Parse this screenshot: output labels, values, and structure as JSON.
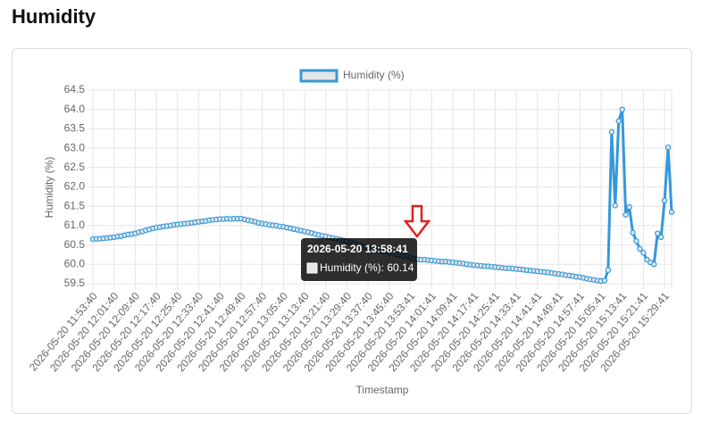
{
  "page": {
    "heading": "Humidity"
  },
  "chart_data": {
    "type": "line",
    "x_label": "Timestamp",
    "y_label": "Humidity (%)",
    "categories": [
      "2026-05-20 11:53:40",
      null,
      null,
      null,
      null,
      null,
      "2026-05-20 12:01:40",
      null,
      null,
      null,
      null,
      null,
      "2026-05-20 12:09:40",
      null,
      null,
      null,
      null,
      null,
      "2026-05-20 12:17:40",
      null,
      null,
      null,
      null,
      null,
      "2026-05-20 12:25:40",
      null,
      null,
      null,
      null,
      null,
      "2026-05-20 12:33:40",
      null,
      null,
      null,
      null,
      null,
      "2026-05-20 12:41:40",
      null,
      null,
      null,
      null,
      null,
      "2026-05-20 12:49:40",
      null,
      null,
      null,
      null,
      null,
      "2026-05-20 12:57:40",
      null,
      null,
      null,
      null,
      null,
      "2026-05-20 13:05:40",
      null,
      null,
      null,
      null,
      null,
      "2026-05-20 13:13:40",
      null,
      null,
      null,
      null,
      null,
      "2026-05-20 13:21:40",
      null,
      null,
      null,
      null,
      null,
      "2026-05-20 13:29:40",
      null,
      null,
      null,
      null,
      null,
      "2026-05-20 13:37:40",
      null,
      null,
      null,
      null,
      null,
      "2026-05-20 13:45:40",
      null,
      null,
      null,
      null,
      null,
      "2026-05-20 13:53:41",
      "2026-05-20 13:58:41",
      null,
      null,
      null,
      null,
      "2026-05-20 14:01:41",
      null,
      null,
      null,
      null,
      null,
      "2026-05-20 14:09:41",
      null,
      null,
      null,
      null,
      null,
      "2026-05-20 14:17:41",
      null,
      null,
      null,
      null,
      null,
      "2026-05-20 14:25:41",
      null,
      null,
      null,
      null,
      null,
      "2026-05-20 14:33:41",
      null,
      null,
      null,
      null,
      null,
      "2026-05-20 14:41:41",
      null,
      null,
      null,
      null,
      null,
      "2026-05-20 14:49:41",
      null,
      null,
      null,
      null,
      null,
      "2026-05-20 14:57:41",
      null,
      null,
      null,
      null,
      null,
      "2026-05-20 15:05:41",
      null,
      null,
      null,
      null,
      null,
      "2026-05-20 15:13:41",
      null,
      null,
      null,
      null,
      null,
      "2026-05-20 15:21:41",
      null,
      null,
      null,
      null,
      null,
      "2026-05-20 15:29:41",
      null,
      null
    ],
    "tick_every": 6,
    "series": [
      {
        "name": "Humidity (%)",
        "color": "#3498db",
        "fill": "#e6e6e6",
        "values": [
          60.65,
          60.66,
          60.66,
          60.67,
          60.68,
          60.69,
          60.7,
          60.72,
          60.73,
          60.75,
          60.77,
          60.78,
          60.8,
          60.83,
          60.85,
          60.88,
          60.9,
          60.93,
          60.95,
          60.96,
          60.98,
          60.99,
          61.0,
          61.02,
          61.03,
          61.04,
          61.05,
          61.06,
          61.07,
          61.09,
          61.1,
          61.11,
          61.12,
          61.14,
          61.15,
          61.16,
          61.17,
          61.17,
          61.18,
          61.17,
          61.18,
          61.18,
          61.18,
          61.16,
          61.14,
          61.12,
          61.1,
          61.07,
          61.05,
          61.04,
          61.02,
          61.01,
          61.0,
          60.98,
          60.97,
          60.95,
          60.93,
          60.91,
          60.89,
          60.87,
          60.85,
          60.83,
          60.81,
          60.78,
          60.76,
          60.74,
          60.72,
          60.7,
          60.68,
          60.66,
          60.64,
          60.62,
          60.6,
          60.57,
          60.54,
          60.51,
          60.48,
          60.45,
          60.42,
          60.4,
          60.38,
          60.36,
          60.34,
          60.32,
          60.3,
          60.28,
          60.26,
          60.24,
          60.22,
          60.2,
          60.18,
          60.14,
          60.13,
          60.12,
          60.12,
          60.11,
          60.1,
          60.09,
          60.08,
          60.07,
          60.07,
          60.06,
          60.05,
          60.04,
          60.03,
          60.02,
          60.0,
          59.99,
          59.98,
          59.97,
          59.96,
          59.95,
          59.95,
          59.94,
          59.93,
          59.92,
          59.91,
          59.9,
          59.9,
          59.89,
          59.88,
          59.87,
          59.86,
          59.85,
          59.84,
          59.83,
          59.82,
          59.81,
          59.8,
          59.79,
          59.78,
          59.76,
          59.75,
          59.74,
          59.72,
          59.71,
          59.7,
          59.68,
          59.67,
          59.65,
          59.63,
          59.61,
          59.6,
          59.58,
          59.57,
          59.58,
          59.85,
          63.42,
          61.52,
          63.7,
          64.0,
          61.28,
          61.48,
          60.82,
          60.6,
          60.4,
          60.3,
          60.12,
          60.05,
          60.0,
          60.8,
          60.7,
          61.65,
          63.02,
          61.35
        ]
      }
    ],
    "ylim": [
      59.5,
      64.5
    ],
    "yticks": [
      59.5,
      {
        "value": 60,
        "label": "60.0"
      },
      60.5,
      {
        "value": 61,
        "label": "61.0"
      },
      61.5,
      {
        "value": 62,
        "label": "62.0"
      },
      62.5,
      {
        "value": 63,
        "label": "63.0"
      },
      63.5,
      {
        "value": 64,
        "label": "64.0"
      },
      64.5
    ],
    "grid": true,
    "legend": "top",
    "tooltip": {
      "title": "2026-05-20 13:58:41",
      "label": "Humidity (%): 60.14"
    }
  }
}
